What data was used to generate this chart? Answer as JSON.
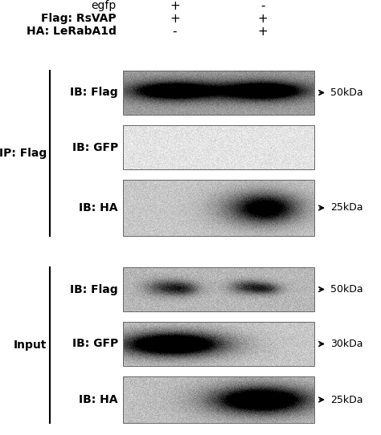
{
  "background_color": "#ffffff",
  "header_rows": [
    {
      "label": "egfp",
      "bold": false,
      "col1": "+",
      "col2": "-"
    },
    {
      "label": "Flag: RsVAP",
      "bold": true,
      "col1": "+",
      "col2": "+"
    },
    {
      "label": "HA: LeRabA1d",
      "bold": true,
      "col1": "-",
      "col2": "+"
    }
  ],
  "section1_label": "IP: Flag",
  "section2_label": "Input",
  "blot_labels_s1": [
    "IB: Flag",
    "IB: GFP",
    "IB: HA"
  ],
  "blot_labels_s2": [
    "IB: Flag",
    "IB: GFP",
    "IB: HA"
  ],
  "size_labels_s1": [
    "50kDa",
    "",
    "25kDa"
  ],
  "size_labels_s2": [
    "50kDa",
    "30kDa",
    "25kDa"
  ],
  "font_size_header": 10,
  "font_size_label": 10,
  "font_size_size": 9
}
